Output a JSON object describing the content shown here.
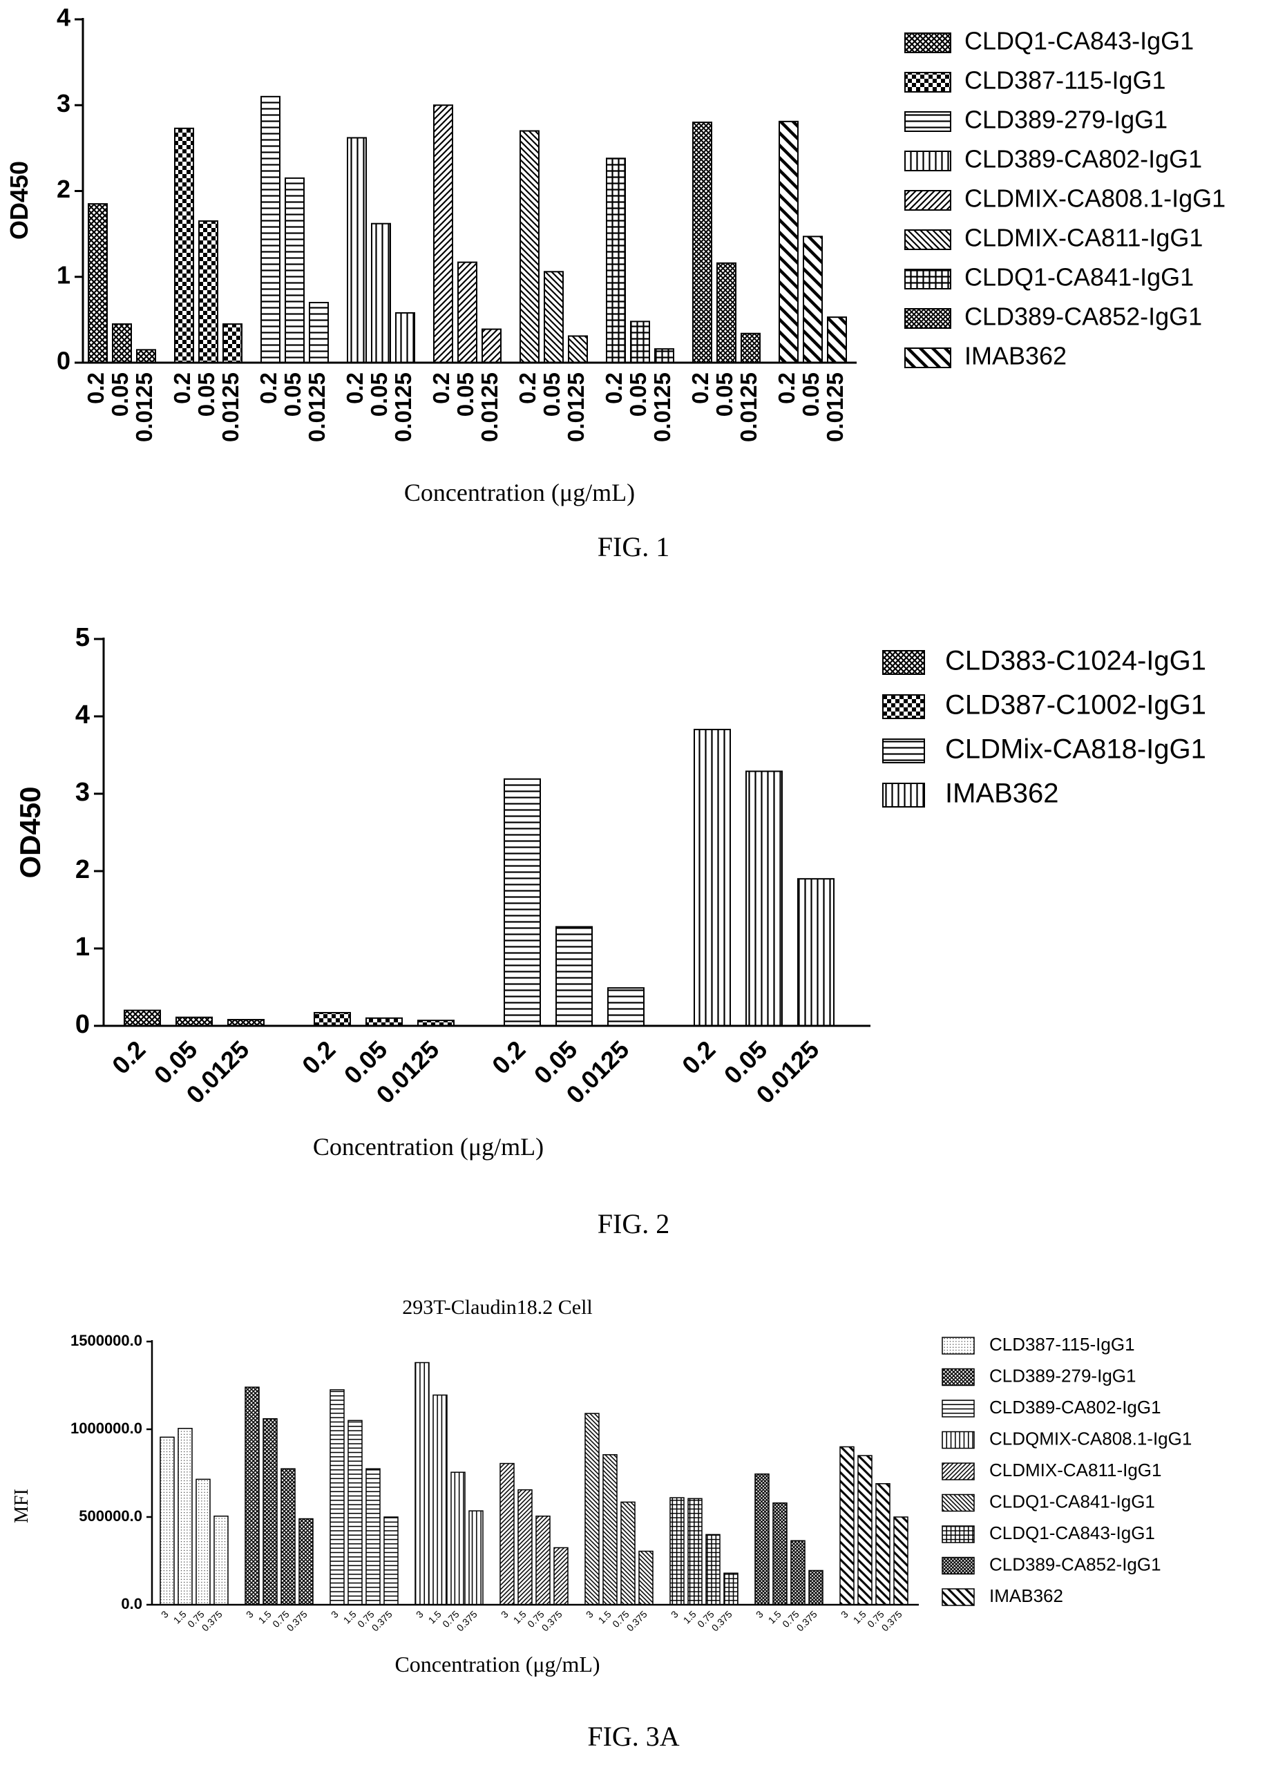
{
  "figures": {
    "fig1_caption": "FIG. 1",
    "fig2_caption": "FIG. 2",
    "fig3a_caption": "FIG. 3A"
  },
  "chart_data": [
    {
      "id": "fig1",
      "type": "bar",
      "title": "",
      "xlabel": "Concentration (μg/mL)",
      "ylabel": "OD450",
      "ylim": [
        0,
        4
      ],
      "yticks": [
        "0",
        "1",
        "2",
        "3",
        "4"
      ],
      "concentrations": [
        "0.2",
        "0.05",
        "0.0125"
      ],
      "legend_position": "right",
      "grid": false,
      "series": [
        {
          "name": "CLDQ1-CA843-IgG1",
          "values": [
            1.85,
            0.45,
            0.15
          ],
          "pattern": "crosshatch"
        },
        {
          "name": "CLD387-115-IgG1",
          "values": [
            2.73,
            1.65,
            0.45
          ],
          "pattern": "checker"
        },
        {
          "name": "CLD389-279-IgG1",
          "values": [
            3.1,
            2.15,
            0.7
          ],
          "pattern": "hlines"
        },
        {
          "name": "CLD389-CA802-IgG1",
          "values": [
            2.62,
            1.62,
            0.58
          ],
          "pattern": "vlines"
        },
        {
          "name": "CLDMIX-CA808.1-IgG1",
          "values": [
            3.0,
            1.17,
            0.39
          ],
          "pattern": "diag"
        },
        {
          "name": "CLDMIX-CA811-IgG1",
          "values": [
            2.7,
            1.06,
            0.31
          ],
          "pattern": "antidiag"
        },
        {
          "name": "CLDQ1-CA841-IgG1",
          "values": [
            2.38,
            0.48,
            0.16
          ],
          "pattern": "grid"
        },
        {
          "name": "CLD389-CA852-IgG1",
          "values": [
            2.8,
            1.16,
            0.34
          ],
          "pattern": "diagcross"
        },
        {
          "name": "IMAB362",
          "values": [
            2.81,
            1.47,
            0.53
          ],
          "pattern": "bigantidiag"
        }
      ]
    },
    {
      "id": "fig2",
      "type": "bar",
      "title": "",
      "xlabel": "Concentration (μg/mL)",
      "ylabel": "OD450",
      "ylim": [
        0,
        5
      ],
      "yticks": [
        "0",
        "1",
        "2",
        "3",
        "4",
        "5"
      ],
      "concentrations": [
        "0.2",
        "0.05",
        "0.0125"
      ],
      "legend_position": "right",
      "grid": false,
      "series": [
        {
          "name": "CLD383-C1024-IgG1",
          "values": [
            0.2,
            0.11,
            0.08
          ],
          "pattern": "crosshatch"
        },
        {
          "name": "CLD387-C1002-IgG1",
          "values": [
            0.17,
            0.1,
            0.07
          ],
          "pattern": "checker"
        },
        {
          "name": "CLDMix-CA818-IgG1",
          "values": [
            3.19,
            1.28,
            0.49
          ],
          "pattern": "hlines"
        },
        {
          "name": "IMAB362",
          "values": [
            3.83,
            3.29,
            1.9
          ],
          "pattern": "vlines"
        }
      ]
    },
    {
      "id": "fig3a",
      "type": "bar",
      "title": "293T-Claudin18.2 Cell",
      "xlabel": "Concentration (μg/mL)",
      "ylabel": "MFI",
      "ylim": [
        0,
        1500000
      ],
      "yticks": [
        "0.0",
        "500000.0",
        "1000000.0",
        "1500000.0"
      ],
      "concentrations": [
        "3",
        "1.5",
        "0.75",
        "0.375"
      ],
      "legend_position": "right",
      "grid": false,
      "series": [
        {
          "name": "CLD387-115-IgG1",
          "values": [
            955000,
            1005000,
            715000,
            505000
          ],
          "pattern": "dots"
        },
        {
          "name": "CLD389-279-IgG1",
          "values": [
            1240000,
            1060000,
            775000,
            490000
          ],
          "pattern": "crosshatch"
        },
        {
          "name": "CLD389-CA802-IgG1",
          "values": [
            1225000,
            1050000,
            775000,
            500000
          ],
          "pattern": "hlines"
        },
        {
          "name": "CLDQMIX-CA808.1-IgG1",
          "values": [
            1380000,
            1195000,
            755000,
            535000
          ],
          "pattern": "vlines"
        },
        {
          "name": "CLDMIX-CA811-IgG1",
          "values": [
            805000,
            655000,
            505000,
            325000
          ],
          "pattern": "diag"
        },
        {
          "name": "CLDQ1-CA841-IgG1",
          "values": [
            1090000,
            855000,
            585000,
            305000
          ],
          "pattern": "antidiag"
        },
        {
          "name": "CLDQ1-CA843-IgG1",
          "values": [
            610000,
            605000,
            400000,
            180000
          ],
          "pattern": "grid"
        },
        {
          "name": "CLD389-CA852-IgG1",
          "values": [
            745000,
            580000,
            365000,
            195000
          ],
          "pattern": "diagcross"
        },
        {
          "name": "IMAB362",
          "values": [
            900000,
            850000,
            690000,
            500000
          ],
          "pattern": "bigantidiag"
        }
      ]
    }
  ]
}
